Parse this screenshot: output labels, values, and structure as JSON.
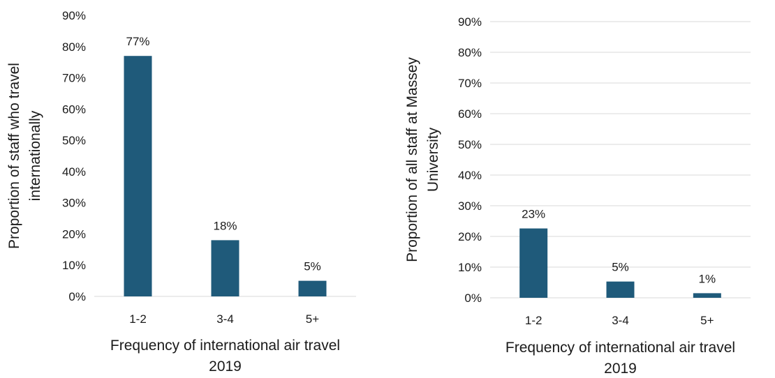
{
  "chart_data": [
    {
      "type": "bar",
      "categories": [
        "1-2",
        "3-4",
        "5+"
      ],
      "values": [
        0.77,
        0.18,
        0.05
      ],
      "data_labels": [
        "77%",
        "18%",
        "5%"
      ],
      "xlabel": [
        "Frequency of international air travel",
        "2019"
      ],
      "ylabel": [
        "Proportion of staff who travel",
        "internationally"
      ],
      "ylim": [
        0,
        0.9
      ],
      "y_ticks": [
        "0%",
        "10%",
        "20%",
        "30%",
        "40%",
        "50%",
        "60%",
        "70%",
        "80%",
        "90%"
      ],
      "grid": false,
      "bar_color": "#1f5a7a"
    },
    {
      "type": "bar",
      "categories": [
        "1-2",
        "3-4",
        "5+"
      ],
      "values": [
        0.226,
        0.053,
        0.015
      ],
      "data_labels": [
        "23%",
        "5%",
        "1%"
      ],
      "xlabel": [
        "Frequency of international air travel",
        "2019"
      ],
      "ylabel": [
        "Proportion of all staff at Massey",
        "University"
      ],
      "ylim": [
        0,
        0.9
      ],
      "y_ticks": [
        "0%",
        "10%",
        "20%",
        "30%",
        "40%",
        "50%",
        "60%",
        "70%",
        "80%",
        "90%"
      ],
      "grid": true,
      "bar_color": "#1f5a7a"
    }
  ]
}
